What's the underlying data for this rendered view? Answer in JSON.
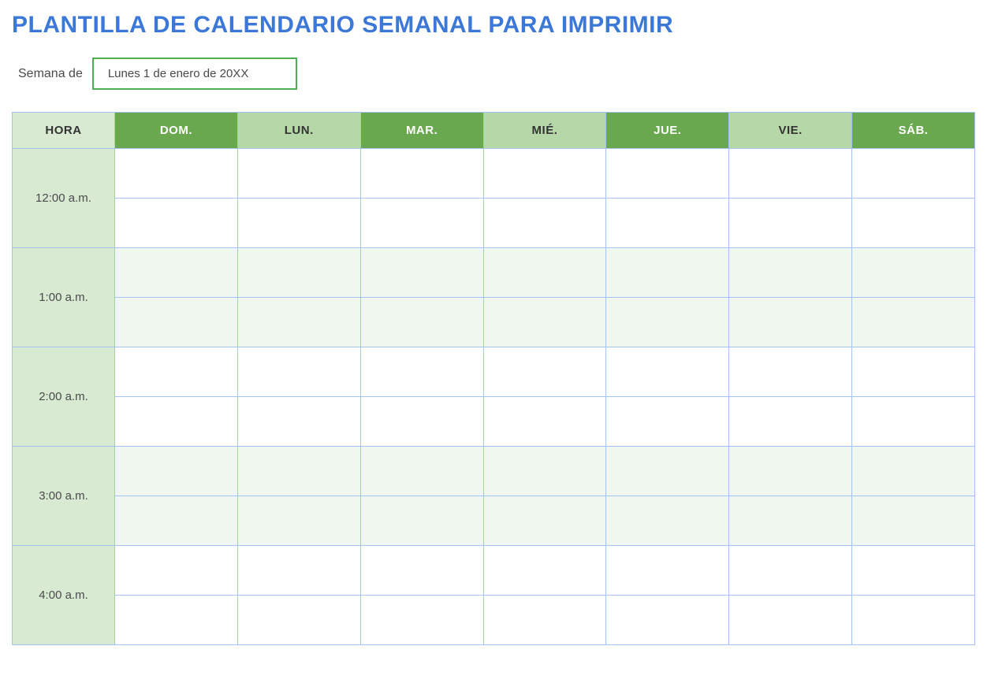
{
  "title": "PLANTILLA DE CALENDARIO SEMANAL PARA IMPRIMIR",
  "weekOf": {
    "label": "Semana de",
    "value": "Lunes 1 de enero de 20XX"
  },
  "calendar": {
    "headers": {
      "time": "HORA",
      "days": [
        "DOM.",
        "LUN.",
        "MAR.",
        "MIÉ.",
        "JUE.",
        "VIE.",
        "SÁB."
      ]
    },
    "timeSlots": [
      "12:00 a.m.",
      "1:00 a.m.",
      "2:00 a.m.",
      "3:00 a.m.",
      "4:00 a.m."
    ],
    "colors": {
      "title": "#3c78d8",
      "border": "#a4c2f4",
      "dateBoxBorder": "#4caf50",
      "timeColBg": "#d9ead3",
      "dayHeaderDarkBg": "#6aa84f",
      "dayHeaderDarkText": "#ffffff",
      "dayHeaderLightBg": "#b6d7a8",
      "dayHeaderLightText": "#333333",
      "rowWhite": "#ffffff",
      "rowTint": "#f0f7ee"
    },
    "layout": {
      "subrowsPerHour": 2,
      "timeColWidthPx": 130,
      "slotHeightPx": 63
    }
  }
}
